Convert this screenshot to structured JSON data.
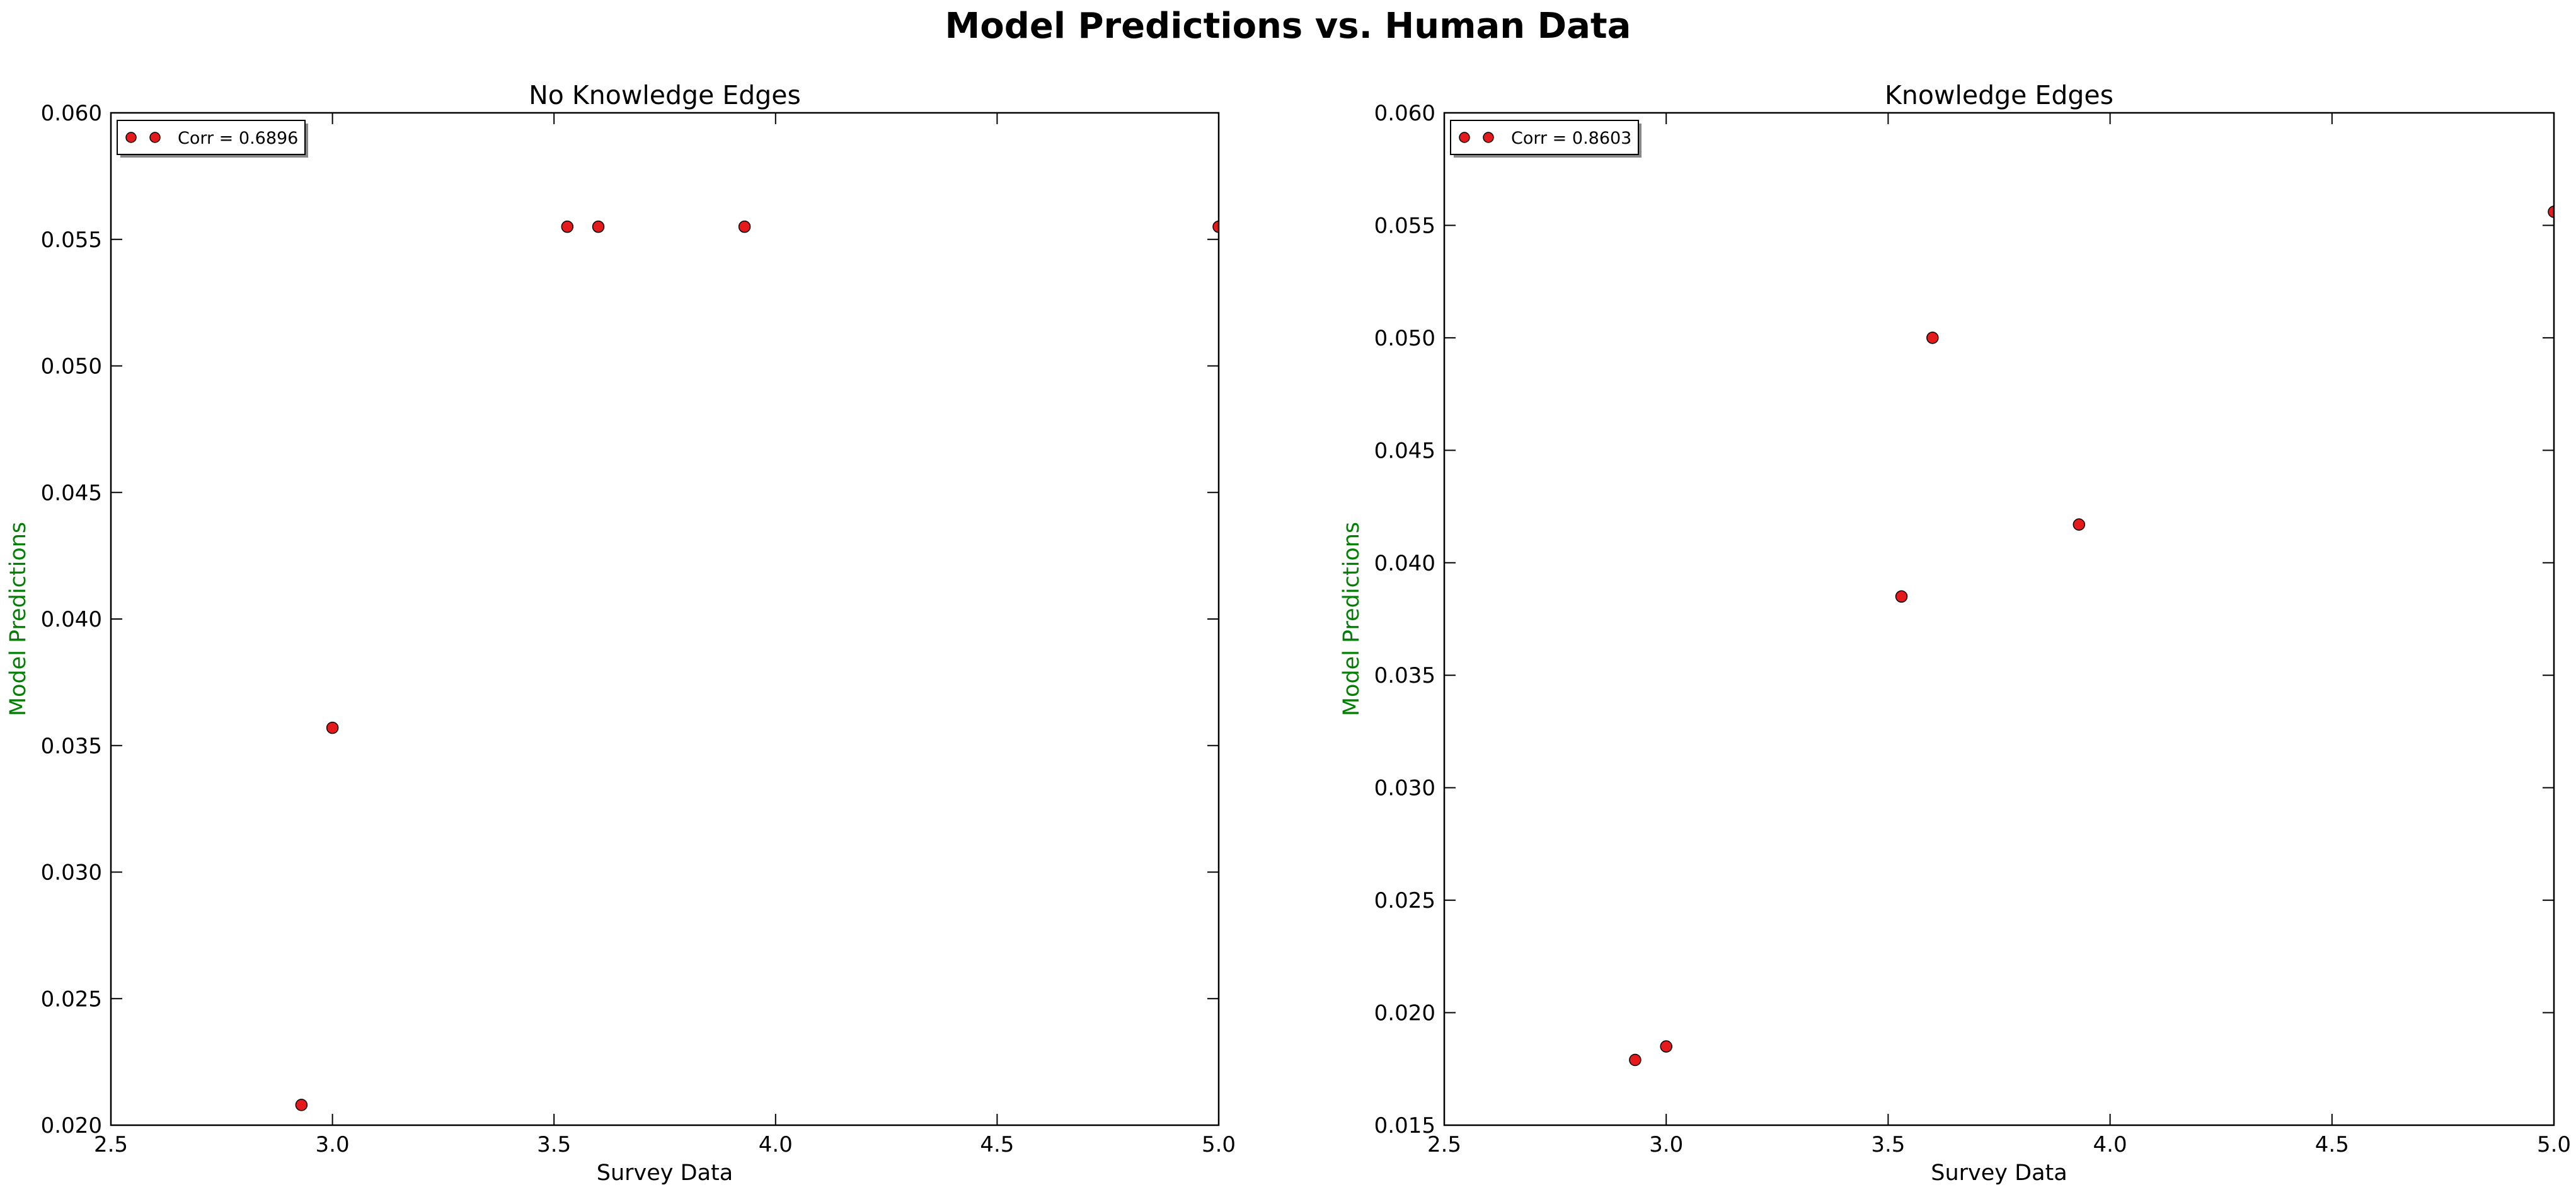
{
  "figure": {
    "suptitle": "Model Predictions vs. Human Data"
  },
  "colors": {
    "marker_fill": "#e41a1c",
    "marker_edge": "#000000",
    "ylabel": "#008000",
    "axis": "#000000",
    "background": "#ffffff"
  },
  "chart_data": [
    {
      "type": "scatter",
      "title": "No Knowledge Edges",
      "xlabel": "Survey Data",
      "ylabel": "Model Predictions",
      "xlim": [
        2.5,
        5.0
      ],
      "ylim": [
        0.02,
        0.06
      ],
      "xticks": [
        2.5,
        3.0,
        3.5,
        4.0,
        4.5,
        5.0
      ],
      "xtick_labels": [
        "2.5",
        "3.0",
        "3.5",
        "4.0",
        "4.5",
        "5.0"
      ],
      "yticks": [
        0.02,
        0.025,
        0.03,
        0.035,
        0.04,
        0.045,
        0.05,
        0.055,
        0.06
      ],
      "ytick_labels": [
        "0.020",
        "0.025",
        "0.030",
        "0.035",
        "0.040",
        "0.045",
        "0.050",
        "0.055",
        "0.060"
      ],
      "grid": false,
      "legend_position": "top-left",
      "legend_label": "Corr = 0.6896",
      "series": [
        {
          "x": [
            2.93,
            3.0,
            3.53,
            3.6,
            3.93,
            5.0
          ],
          "y": [
            0.0208,
            0.0357,
            0.0555,
            0.0555,
            0.0555,
            0.0555
          ]
        }
      ]
    },
    {
      "type": "scatter",
      "title": "Knowledge Edges",
      "xlabel": "Survey Data",
      "ylabel": "Model Predictions",
      "xlim": [
        2.5,
        5.0
      ],
      "ylim": [
        0.015,
        0.06
      ],
      "xticks": [
        2.5,
        3.0,
        3.5,
        4.0,
        4.5,
        5.0
      ],
      "xtick_labels": [
        "2.5",
        "3.0",
        "3.5",
        "4.0",
        "4.5",
        "5.0"
      ],
      "yticks": [
        0.015,
        0.02,
        0.025,
        0.03,
        0.035,
        0.04,
        0.045,
        0.05,
        0.055,
        0.06
      ],
      "ytick_labels": [
        "0.015",
        "0.020",
        "0.025",
        "0.030",
        "0.035",
        "0.040",
        "0.045",
        "0.050",
        "0.055",
        "0.060"
      ],
      "grid": false,
      "legend_position": "top-left",
      "legend_label": "Corr = 0.8603",
      "series": [
        {
          "x": [
            2.93,
            3.0,
            3.53,
            3.6,
            3.93,
            5.0
          ],
          "y": [
            0.0179,
            0.0185,
            0.0385,
            0.05,
            0.0417,
            0.0556
          ]
        }
      ]
    }
  ]
}
